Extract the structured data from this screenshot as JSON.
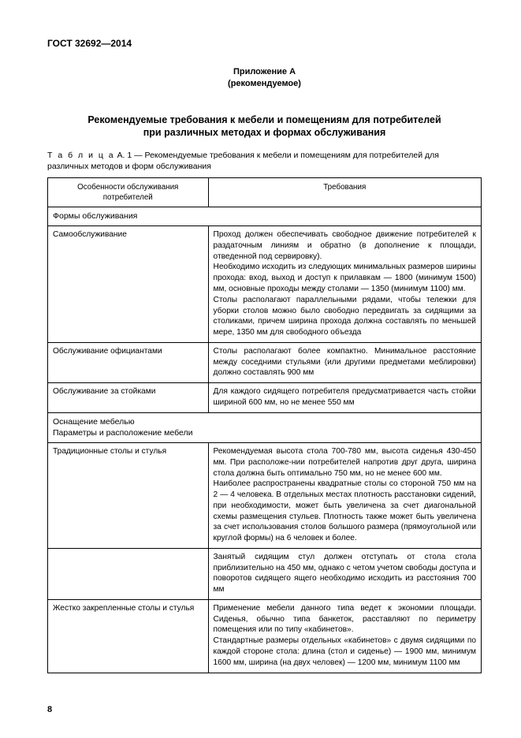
{
  "doc_header": "ГОСТ 32692—2014",
  "annex_title_1": "Приложение А",
  "annex_title_2": "(рекомендуемое)",
  "main_title_1": "Рекомендуемые требования к мебели и помещениям для потребителей",
  "main_title_2": "при различных методах и формах обслуживания",
  "table_caption_prefix": "Т а б л и ц а",
  "table_caption_rest": "  А. 1 — Рекомендуемые требования к мебели и помещениям для потребителей для различных методов и форм обслуживания",
  "th1": "Особенности обслуживания потребителей",
  "th2": "Требования",
  "section1": "Формы обслуживания",
  "r1c1": "Самообслуживание",
  "r1c2_p1": "Проход должен обеспечивать свободное движение потребителей к раздаточным линиям и обратно (в дополнение к площади, отведенной под сервировку).",
  "r1c2_p2": "Необходимо исходить из следующих минимальных размеров ширины прохода: вход, выход и доступ к прилавкам — 1800 (минимум 1500) мм, основные проходы между столами — 1350 (минимум 1100) мм.",
  "r1c2_p3": "Столы располагают параллельными рядами, чтобы тележки для уборки столов можно было свободно передвигать за сидящими за столиками, причем ширина прохода должна составлять по меньшей мере, 1350 мм для свободного объезда",
  "r2c1": "Обслуживание официантами",
  "r2c2": "Столы располагают более компактно. Минимальное расстояние между соседними стульями (или другими предметами меблировки) должно составлять 900 мм",
  "r3c1": "Обслуживание за стойками",
  "r3c2": "Для каждого сидящего потребителя предусматривается часть стойки шириной 600 мм, но не менее 550 мм",
  "section2_l1": "Оснащение мебелью",
  "section2_l2": "Параметры и расположение мебели",
  "r4c1": "Традиционные столы и стулья",
  "r4c2_p1": "Рекомендуемая высота стола 700-780 мм, высота сиденья 430-450 мм. При расположе-нии потребителей напротив друг друга, ширина стола должна быть оптимально 750 мм, но не менее 600 мм.",
  "r4c2_p2": "Наиболее распространены квадратные столы со стороной 750 мм на 2 — 4 человека. В отдельных местах плотность расстановки сидений, при необходимости, может быть увеличена за счет диагональной схемы размещения стульев. Плотность также может быть увеличена за счет использования столов большого размера (прямоугольной или круглой формы) на 6 человек и более.",
  "r5c2": "Занятый сидящим стул должен отступать от стола стола приблизительно на 450 мм, однако с четом учетом свободы доступа и поворотов сидящего ящего необходимо исходить из расстояния 700 мм",
  "r6c1": "Жестко закрепленные столы и стулья",
  "r6c2_p1": "Применение мебели данного типа ведет к экономии площади. Сиденья, обычно типа банкеток, расставляют по периметру помещения или по типу «кабинетов».",
  "r6c2_p2": "Стандартные размеры отдельных «кабинетов» с двумя сидящими по каждой стороне стола: длина (стол и сиденье) — 1900 мм, минимум 1600 мм, ширина (на двух человек) — 1200 мм, минимум 1100 мм",
  "page_num": "8"
}
